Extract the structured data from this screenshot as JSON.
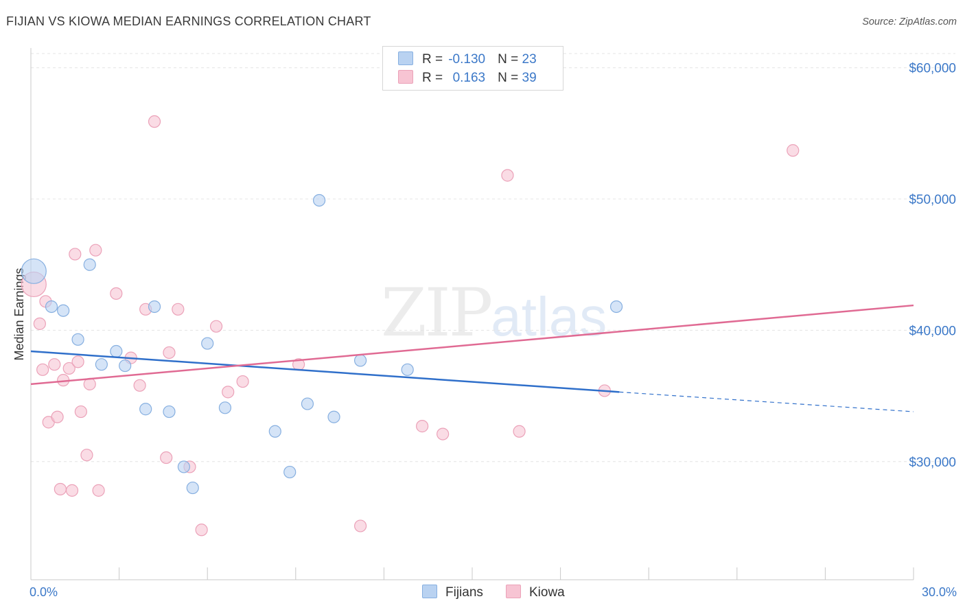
{
  "title": "FIJIAN VS KIOWA MEDIAN EARNINGS CORRELATION CHART",
  "source": "Source: ZipAtlas.com",
  "watermark": {
    "zip": "ZIP",
    "atlas": "atlas"
  },
  "legend": {
    "rows": [
      {
        "r_label": "R =",
        "r_value": "-0.130",
        "n_label": "N =",
        "n_value": "23"
      },
      {
        "r_label": "R =",
        "r_value": "0.163",
        "n_label": "N =",
        "n_value": "39"
      }
    ]
  },
  "bottom_legend": {
    "series1": "Fijians",
    "series2": "Kiowa"
  },
  "colors": {
    "fijians_fill": "#b9d2f1",
    "fijians_stroke": "#86afe0",
    "fijians_line": "#2f6fca",
    "kiowa_fill": "#f7c4d3",
    "kiowa_stroke": "#eba1b8",
    "kiowa_line": "#e06a93",
    "tick_label": "#3b78c8",
    "grid": "#e4e4e4"
  },
  "chart_data": {
    "type": "scatter",
    "title": "FIJIAN VS KIOWA MEDIAN EARNINGS CORRELATION CHART",
    "xlabel": "",
    "ylabel": "Median Earnings",
    "xlim": [
      0,
      30
    ],
    "ylim": [
      21000,
      61500
    ],
    "x_tick_labels": [
      "0.0%",
      "30.0%"
    ],
    "y_ticks": [
      30000,
      40000,
      50000,
      60000
    ],
    "y_tick_labels": [
      "$30,000",
      "$40,000",
      "$50,000",
      "$60,000"
    ],
    "grid": true,
    "legend_position": "top-center",
    "series": [
      {
        "name": "Fijians",
        "r": -0.13,
        "n": 23,
        "points": [
          [
            0.1,
            44500
          ],
          [
            0.7,
            41800
          ],
          [
            1.1,
            41500
          ],
          [
            1.6,
            39300
          ],
          [
            2.0,
            45000
          ],
          [
            2.4,
            37400
          ],
          [
            2.9,
            38400
          ],
          [
            3.2,
            37300
          ],
          [
            3.9,
            34000
          ],
          [
            4.2,
            41800
          ],
          [
            4.7,
            33800
          ],
          [
            5.2,
            29600
          ],
          [
            5.5,
            28000
          ],
          [
            6.0,
            39000
          ],
          [
            6.6,
            34100
          ],
          [
            8.3,
            32300
          ],
          [
            8.8,
            29200
          ],
          [
            9.4,
            34400
          ],
          [
            9.8,
            49900
          ],
          [
            10.3,
            33400
          ],
          [
            11.2,
            37700
          ],
          [
            12.8,
            37000
          ],
          [
            19.9,
            41800
          ]
        ],
        "trend": {
          "x0": 0,
          "y0": 38400,
          "x1": 20,
          "y1": 35300,
          "dashed_to_x": 30,
          "dashed_to_y": 33800
        }
      },
      {
        "name": "Kiowa",
        "r": 0.163,
        "n": 39,
        "points": [
          [
            0.1,
            43500
          ],
          [
            0.3,
            40500
          ],
          [
            0.4,
            37000
          ],
          [
            0.5,
            42200
          ],
          [
            0.6,
            33000
          ],
          [
            0.8,
            37400
          ],
          [
            0.9,
            33400
          ],
          [
            1.0,
            27900
          ],
          [
            1.1,
            36200
          ],
          [
            1.3,
            37100
          ],
          [
            1.4,
            27800
          ],
          [
            1.5,
            45800
          ],
          [
            1.6,
            37600
          ],
          [
            1.7,
            33800
          ],
          [
            1.9,
            30500
          ],
          [
            2.0,
            35900
          ],
          [
            2.2,
            46100
          ],
          [
            2.3,
            27800
          ],
          [
            2.9,
            42800
          ],
          [
            3.4,
            37900
          ],
          [
            3.7,
            35800
          ],
          [
            3.9,
            41600
          ],
          [
            4.2,
            55900
          ],
          [
            4.6,
            30300
          ],
          [
            4.7,
            38300
          ],
          [
            5.0,
            41600
          ],
          [
            5.4,
            29600
          ],
          [
            5.8,
            24800
          ],
          [
            6.3,
            40300
          ],
          [
            6.7,
            35300
          ],
          [
            7.2,
            36100
          ],
          [
            9.1,
            37400
          ],
          [
            11.2,
            25100
          ],
          [
            13.3,
            32700
          ],
          [
            14.0,
            32100
          ],
          [
            16.2,
            51800
          ],
          [
            16.6,
            32300
          ],
          [
            19.5,
            35400
          ],
          [
            25.9,
            53700
          ]
        ],
        "trend": {
          "x0": 0,
          "y0": 35900,
          "x1": 30,
          "y1": 41900
        }
      }
    ]
  }
}
